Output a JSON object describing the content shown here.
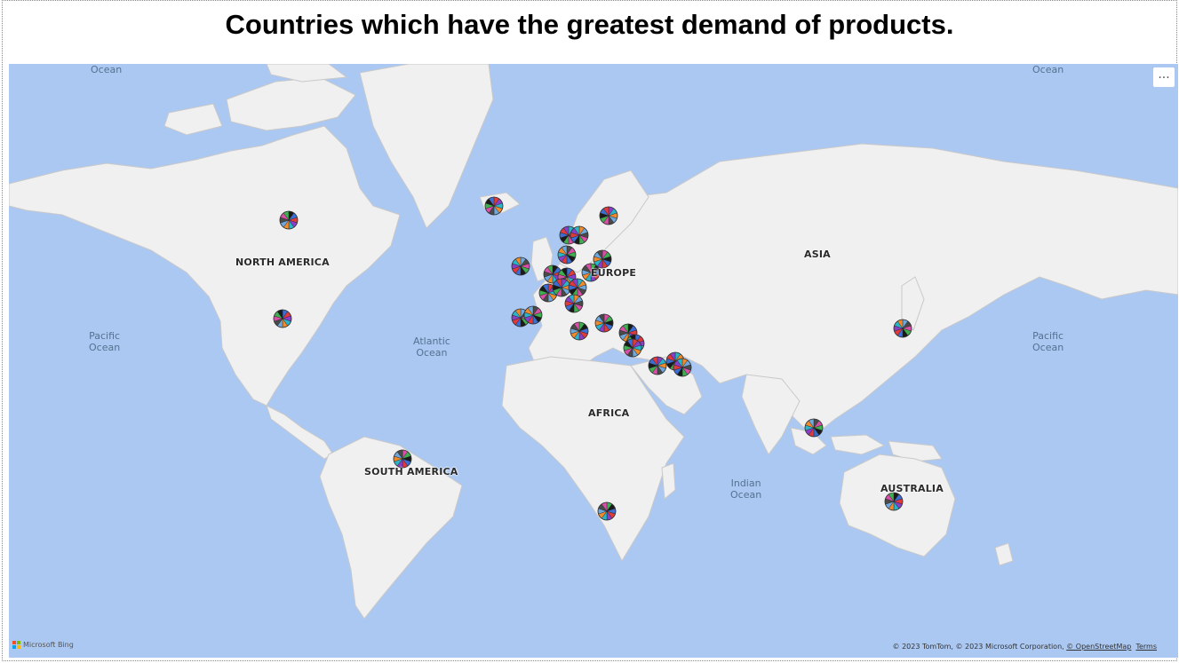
{
  "title": "Countries which have the greatest demand of products.",
  "continents": {
    "north_america": "NORTH AMERICA",
    "south_america": "SOUTH AMERICA",
    "europe": "EUROPE",
    "africa": "AFRICA",
    "asia": "ASIA",
    "australia": "AUSTRALIA"
  },
  "oceans": {
    "top_left": "Ocean",
    "top_right": "Ocean",
    "pacific_left": "Pacific\nOcean",
    "atlantic": "Atlantic\nOcean",
    "indian": "Indian\nOcean",
    "pacific_right": "Pacific\nOcean"
  },
  "more_options": "...",
  "attribution": {
    "bing": "Microsoft Bing",
    "copyright": "© 2023 TomTom, © 2023 Microsoft Corporation, ",
    "osm": "© OpenStreetMap",
    "terms": "Terms"
  },
  "colors": {
    "water": "#abc8f2",
    "land": "#f0f0f0",
    "pie": [
      "#1a1a1a",
      "#3b6fd6",
      "#e03a3a",
      "#8a3fc9",
      "#2bb5c9",
      "#f08a2b",
      "#6fa8dc",
      "#4a4a4a",
      "#d94fa8",
      "#3fb04f"
    ]
  }
}
